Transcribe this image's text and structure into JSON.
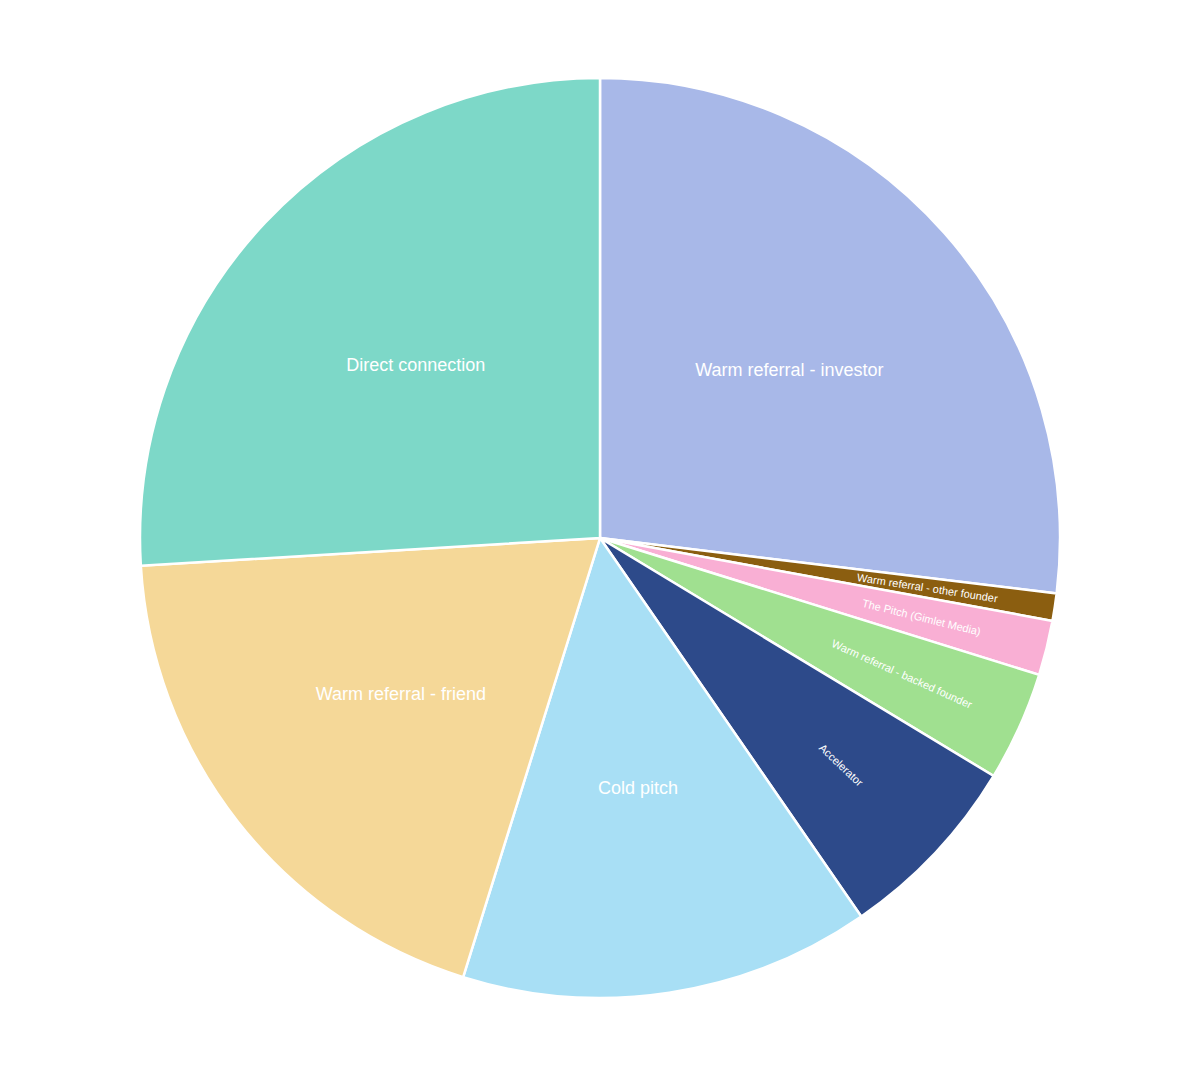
{
  "chart_data": {
    "type": "pie",
    "categories": [
      "Warm referral - investor",
      "Warm referral - other founder",
      "The Pitch (Gimlet Media)",
      "Warm referral - backed founder",
      "Accelerator",
      "Cold pitch",
      "Warm referral - friend",
      "Direct connection"
    ],
    "values": [
      28,
      1,
      2,
      4,
      7,
      15,
      20,
      27
    ],
    "colors": [
      "#a8b8e8",
      "#8B5E10",
      "#f9afd4",
      "#a0e090",
      "#2d4a8a",
      "#a8dff5",
      "#f5d898",
      "#7dd8c8"
    ]
  }
}
